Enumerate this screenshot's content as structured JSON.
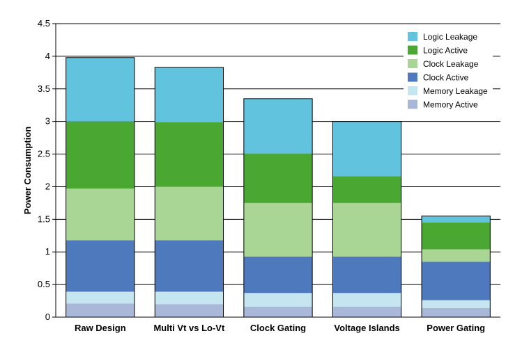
{
  "chart_data": {
    "type": "bar",
    "stacked": true,
    "title": "",
    "xlabel": "",
    "ylabel": "Power Consumption",
    "ylim": [
      0,
      4.5
    ],
    "yticks": [
      "0",
      "0.5",
      "1",
      "1.5",
      "2",
      "2.5",
      "3",
      "3.5",
      "4",
      "4.5"
    ],
    "grid": "horizontal",
    "legend_position": "top-right",
    "categories": [
      "Raw Design",
      "Multi Vt vs Lo-Vt",
      "Clock Gating",
      "Voltage Islands",
      "Power Gating"
    ],
    "series": [
      {
        "name": "Memory Active",
        "color": "#a9b8d9",
        "values": [
          0.21,
          0.2,
          0.16,
          0.16,
          0.14
        ]
      },
      {
        "name": "Memory Leakage",
        "color": "#c5e6f1",
        "values": [
          0.18,
          0.19,
          0.21,
          0.21,
          0.12
        ]
      },
      {
        "name": "Clock Active",
        "color": "#4f79bd",
        "values": [
          0.79,
          0.79,
          0.56,
          0.56,
          0.59
        ]
      },
      {
        "name": "Clock Leakage",
        "color": "#a9d695",
        "values": [
          0.79,
          0.82,
          0.82,
          0.82,
          0.19
        ]
      },
      {
        "name": "Logic Active",
        "color": "#4aa832",
        "values": [
          1.03,
          0.99,
          0.76,
          0.41,
          0.41
        ]
      },
      {
        "name": "Logic Leakage",
        "color": "#62c3df",
        "values": [
          0.98,
          0.84,
          0.84,
          0.84,
          0.1
        ]
      }
    ],
    "legend_order": [
      "Logic Leakage",
      "Logic Active",
      "Clock Leakage",
      "Clock Active",
      "Memory Leakage",
      "Memory Active"
    ]
  }
}
